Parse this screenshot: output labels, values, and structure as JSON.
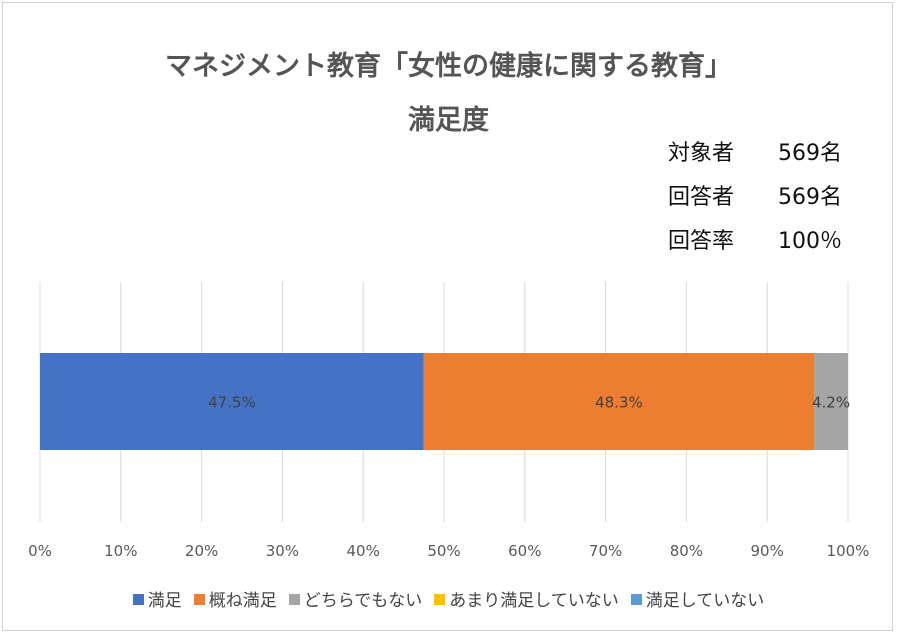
{
  "chart_data": {
    "type": "bar",
    "orientation": "horizontal",
    "stacked": true,
    "title_line1": "マネジメント教育「女性の健康に関する教育」",
    "title_line2": "満足度",
    "series": [
      {
        "name": "満足",
        "value": 47.5,
        "label": "47.5%",
        "color": "#4472c4"
      },
      {
        "name": "概ね満足",
        "value": 48.3,
        "label": "48.3%",
        "color": "#ed7d31"
      },
      {
        "name": "どちらでもない",
        "value": 4.2,
        "label": "4.2%",
        "color": "#a5a5a5"
      },
      {
        "name": "あまり満足していない",
        "value": 0,
        "label": "",
        "color": "#ffc000"
      },
      {
        "name": "満足していない",
        "value": 0,
        "label": "",
        "color": "#5b9bd5"
      }
    ],
    "x_ticks": [
      "0%",
      "10%",
      "20%",
      "30%",
      "40%",
      "50%",
      "60%",
      "70%",
      "80%",
      "90%",
      "100%"
    ],
    "xlim": [
      0,
      100
    ],
    "grid": true,
    "legend_position": "bottom"
  },
  "summary": [
    {
      "label": "対象者",
      "value": "569名"
    },
    {
      "label": "回答者",
      "value": "569名"
    },
    {
      "label": "回答率",
      "value": "100％"
    }
  ]
}
